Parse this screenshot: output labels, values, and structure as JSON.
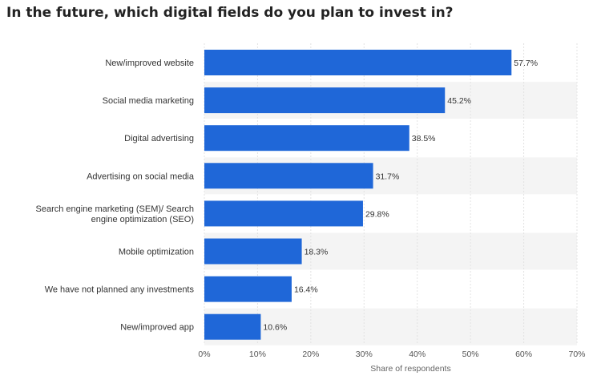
{
  "title": "In the future, which digital fields do you plan to invest in?",
  "chart_data": {
    "type": "bar",
    "orientation": "horizontal",
    "title": "In the future, which digital fields do you plan to invest in?",
    "xlabel": "Share of respondents",
    "ylabel": "",
    "xlim": [
      0,
      70
    ],
    "x_ticks": [
      "0%",
      "10%",
      "20%",
      "30%",
      "40%",
      "50%",
      "60%",
      "70%"
    ],
    "value_suffix": "%",
    "categories": [
      [
        "New/improved website"
      ],
      [
        "Social media marketing"
      ],
      [
        "Digital advertising"
      ],
      [
        "Advertising on social media"
      ],
      [
        "Search engine marketing (SEM)/ Search",
        "engine optimization (SEO)"
      ],
      [
        "Mobile optimization"
      ],
      [
        "We have not planned any investments"
      ],
      [
        "New/improved app"
      ]
    ],
    "values": [
      57.7,
      45.2,
      38.5,
      31.7,
      29.8,
      18.3,
      16.4,
      10.6
    ],
    "value_labels": [
      "57.7%",
      "45.2%",
      "38.5%",
      "31.7%",
      "29.8%",
      "18.3%",
      "16.4%",
      "10.6%"
    ],
    "bar_color": "#1f67d8",
    "band_color": "#f4f4f4",
    "grid": true,
    "legend": "none"
  }
}
